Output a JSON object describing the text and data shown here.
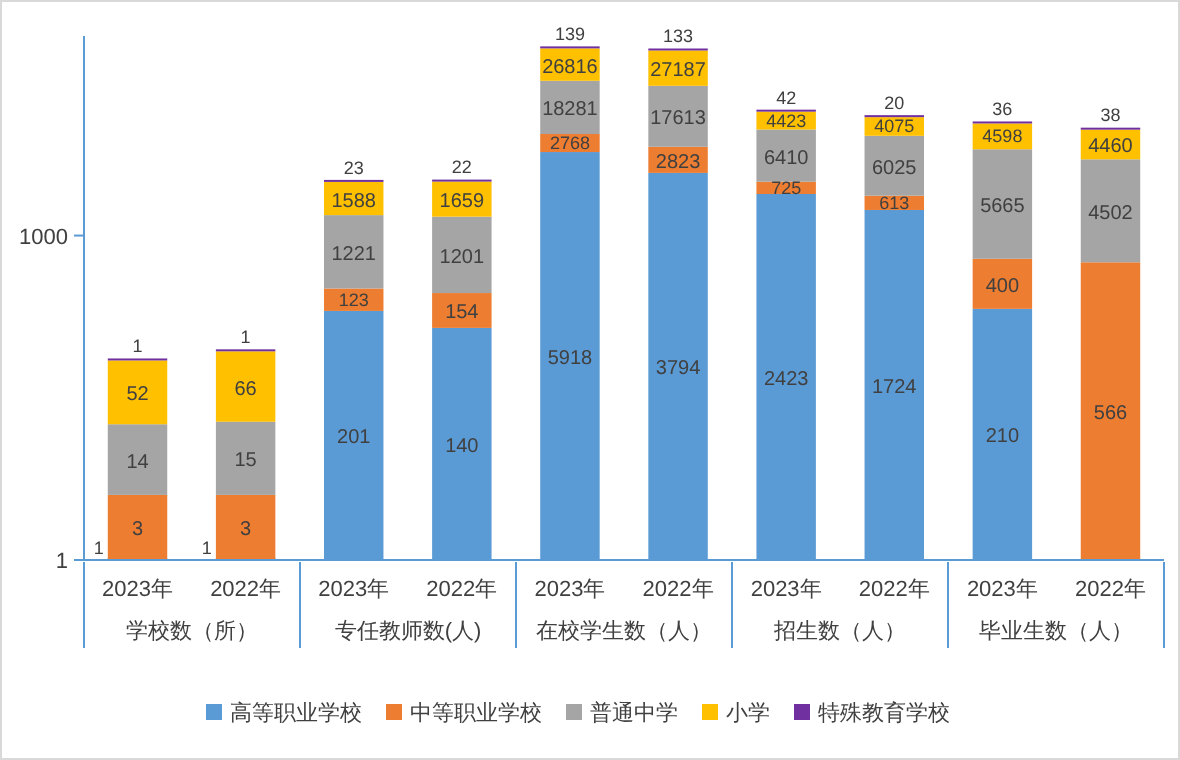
{
  "chart_data": {
    "type": "bar",
    "stacked": true,
    "log": "y",
    "data_labels": true,
    "grid": false,
    "legend": "bottom",
    "categories": [
      "2023年",
      "2022年",
      "2023年",
      "2022年",
      "2023年",
      "2022年",
      "2023年",
      "2022年",
      "2023年",
      "2022年"
    ],
    "annotations": [
      "学校数（所）",
      "专任教师数(人)",
      "在校学生数（人）",
      "招生数（人）",
      "毕业生数（人）"
    ],
    "ylim": [
      1,
      70000
    ],
    "yticks": [
      1,
      1000
    ],
    "series": [
      {
        "name": "高等职业学校",
        "color": "#5b9bd5",
        "values": [
          1,
          1,
          201,
          140,
          5918,
          3794,
          2423,
          1724,
          210,
          null
        ]
      },
      {
        "name": "中等职业学校",
        "color": "#ed7d31",
        "values": [
          3,
          3,
          123,
          154,
          2768,
          2823,
          725,
          613,
          400,
          566
        ]
      },
      {
        "name": "普通中学",
        "color": "#a5a5a5",
        "values": [
          14,
          15,
          1221,
          1201,
          18281,
          17613,
          6410,
          6025,
          5665,
          4502
        ]
      },
      {
        "name": "小学",
        "color": "#ffc000",
        "values": [
          52,
          66,
          1588,
          1659,
          26816,
          27187,
          4423,
          4075,
          4598,
          4460
        ]
      },
      {
        "name": "特殊教育学校",
        "color": "#7030a0",
        "values": [
          1,
          1,
          23,
          22,
          139,
          133,
          42,
          20,
          36,
          38
        ]
      }
    ]
  }
}
